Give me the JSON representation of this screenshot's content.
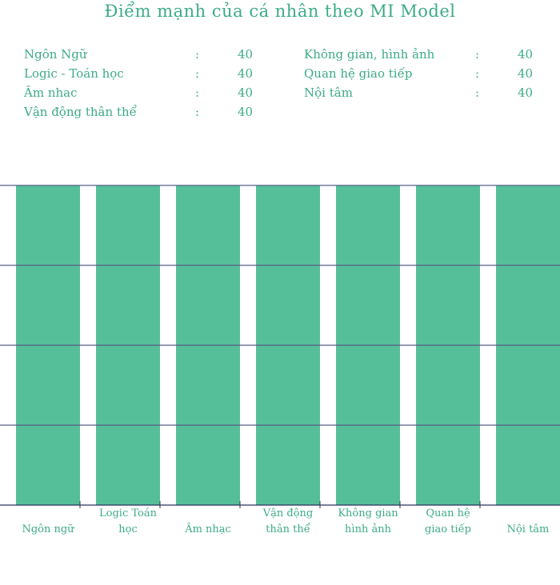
{
  "title": "Điểm mạnh của cá nhân theo MI Model",
  "summary_left": [
    {
      "label": "Ngôn Ngữ",
      "sep": ":",
      "score": "40"
    },
    {
      "label": "Logic - Toán học",
      "sep": ":",
      "score": "40"
    },
    {
      "label": "Âm nhac",
      "sep": ":",
      "score": "40"
    },
    {
      "label": "Vận động thân thể",
      "sep": ":",
      "score": "40"
    }
  ],
  "summary_right": [
    {
      "label": "Không gian, hình ảnh",
      "sep": ":",
      "score": "40"
    },
    {
      "label": "Quan hệ giao tiếp",
      "sep": ":",
      "score": "40"
    },
    {
      "label": "Nội tâm",
      "sep": ":",
      "score": "40"
    }
  ],
  "colors": {
    "bar": "#55bf99",
    "text": "#3dab88",
    "grid": "#5a5f86",
    "axis": "#2b3060"
  },
  "chart_data": {
    "type": "bar",
    "categories": [
      [
        "Ngôn ngữ"
      ],
      [
        "Logic Toán",
        "học"
      ],
      [
        "Âm nhạc"
      ],
      [
        "Vận động",
        "thân thể"
      ],
      [
        "Không gian",
        "hình ảnh"
      ],
      [
        "Quan hệ",
        "giao tiếp"
      ],
      [
        "Nội tâm"
      ]
    ],
    "values": [
      40,
      40,
      40,
      40,
      40,
      40,
      40
    ],
    "ylim": [
      0,
      40
    ],
    "grid": true,
    "gridlines": [
      10,
      20,
      30,
      40
    ],
    "title": "",
    "xlabel": "",
    "ylabel": ""
  }
}
